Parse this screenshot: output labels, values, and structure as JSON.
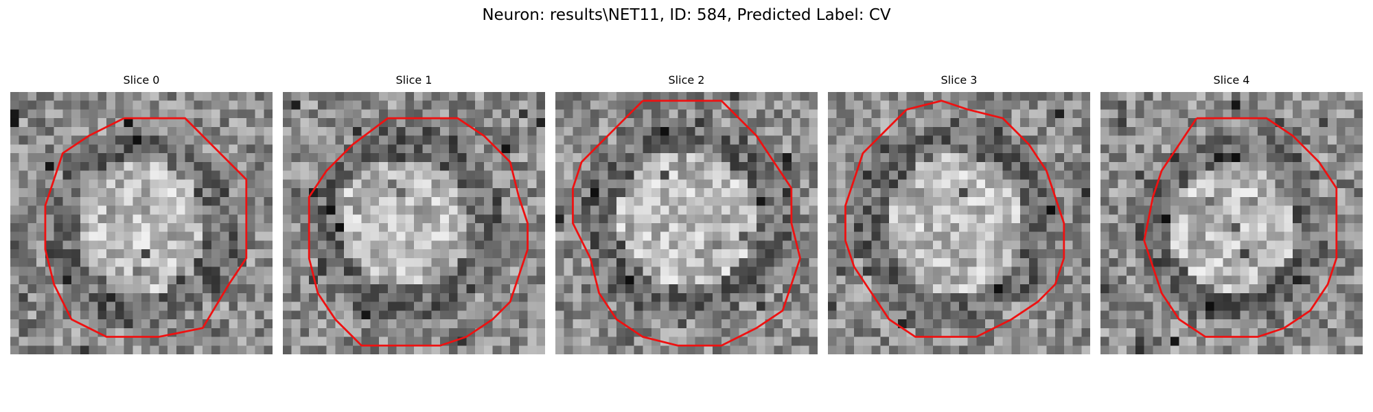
{
  "figure": {
    "title": "Neuron: results\\NET11, ID: 584, Predicted Label: CV"
  },
  "panels": [
    {
      "title": "Slice 0"
    },
    {
      "title": "Slice 1"
    },
    {
      "title": "Slice 2"
    },
    {
      "title": "Slice 3"
    },
    {
      "title": "Slice 4"
    }
  ],
  "colors": {
    "contour": "#ee1111",
    "background": "#ffffff"
  },
  "image_style": "grayscale-pixelated-microscopy",
  "contour_shape": "octagonal-red-outline"
}
